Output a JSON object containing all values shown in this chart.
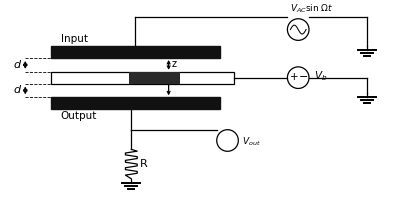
{
  "bg_color": "#ffffff",
  "line_color": "#000000",
  "plate_color": "#111111",
  "figsize": [
    4.04,
    2.21
  ],
  "dpi": 100,
  "labels": {
    "input": "Input",
    "output": "Output",
    "d": "d",
    "z": "z",
    "R": "R",
    "Vout": "V_{out}",
    "Vb": "V_b",
    "VAC": "V_{AC}sin Ωt"
  }
}
